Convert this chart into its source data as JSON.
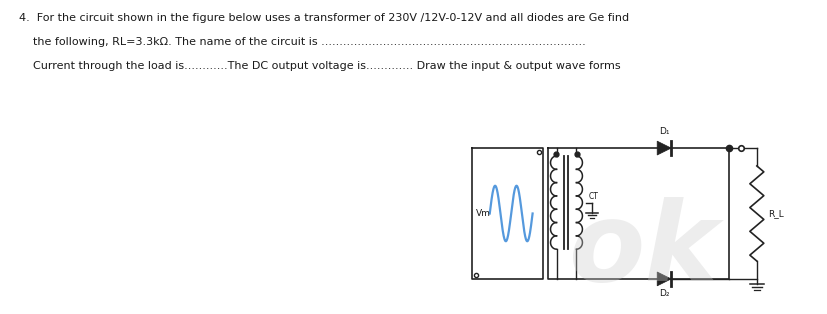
{
  "line1": "4.  For the circuit shown in the figure below uses a transformer of 230V /12V-0-12V and all diodes are Ge find",
  "line2": "    the following, RL=3.3kΩ. The name of the circuit is .........................................................................",
  "line3": "    Current through the load is............The DC output voltage is............. Draw the input & output wave forms",
  "bg_color": "#ffffff",
  "text_color": "#1a1a1a",
  "sine_color": "#5599dd",
  "circuit_color": "#222222",
  "watermark_color": "#cccccc",
  "fig_width": 8.28,
  "fig_height": 3.14,
  "dpi": 100
}
